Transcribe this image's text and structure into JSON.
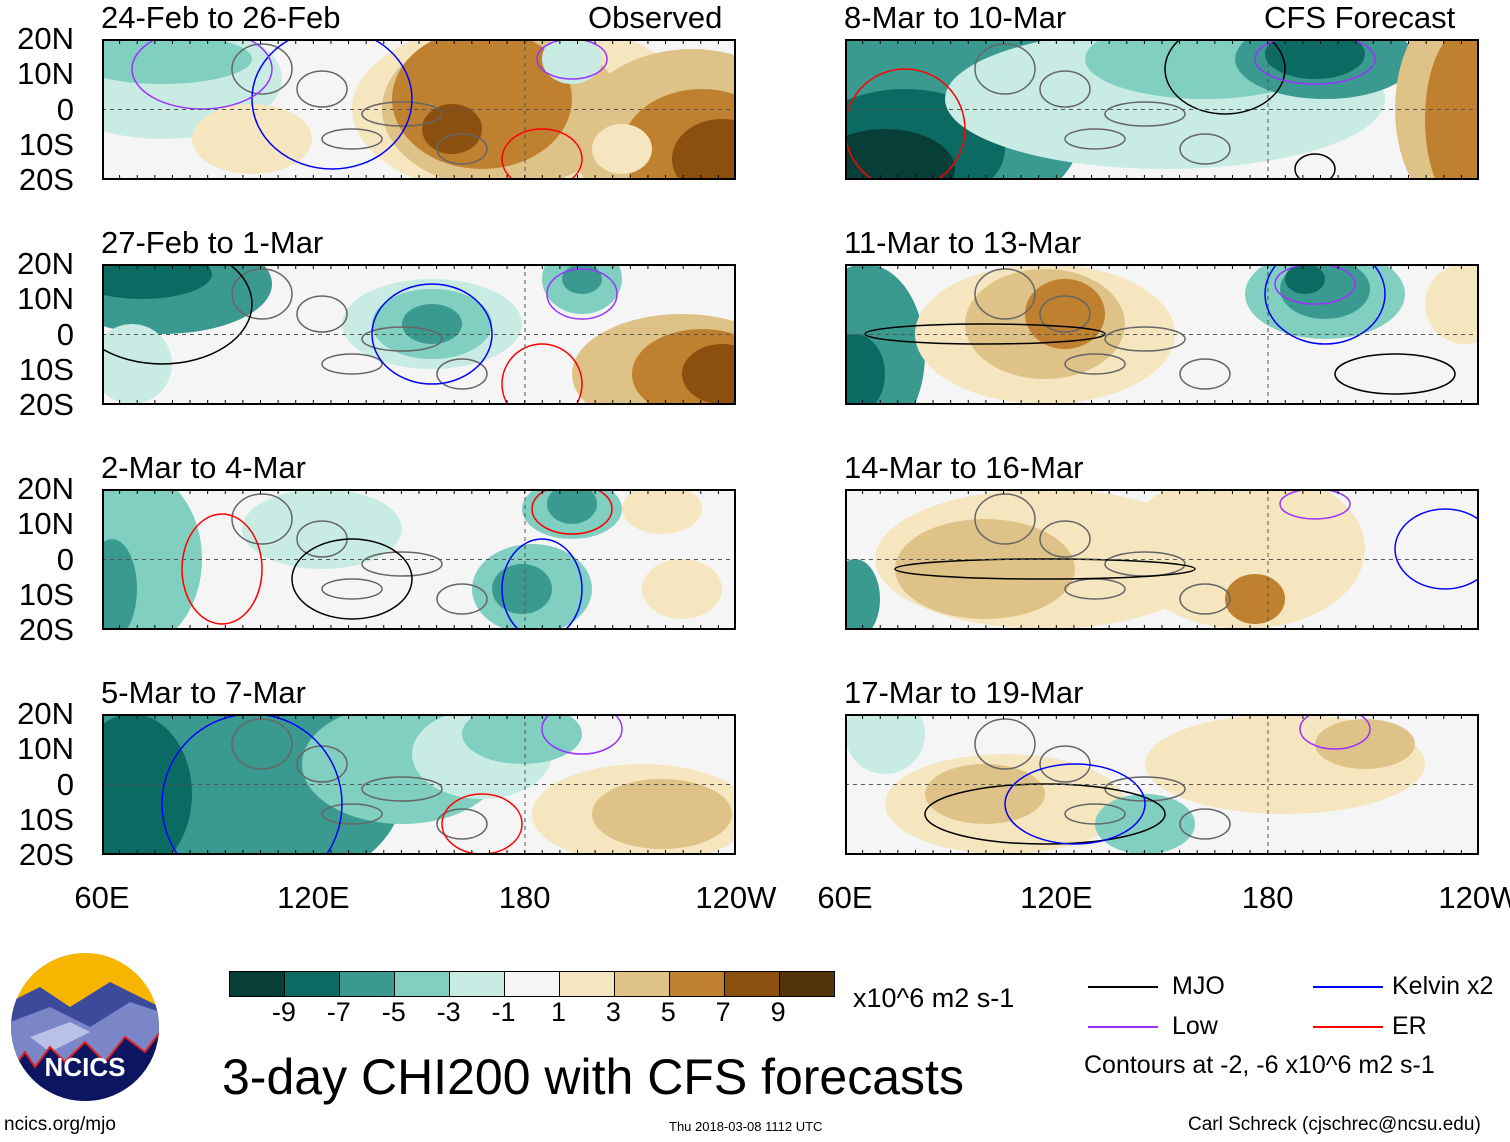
{
  "chart_data": {
    "type": "heatmap",
    "title": "3-day CHI200 with CFS forecasts",
    "left_column_label": "Observed",
    "right_column_label": "CFS Forecast",
    "panels": [
      {
        "title": "24-Feb to 26-Feb",
        "column": "Observed"
      },
      {
        "title": "27-Feb to 1-Mar",
        "column": "Observed"
      },
      {
        "title": "2-Mar to 4-Mar",
        "column": "Observed"
      },
      {
        "title": "5-Mar to 7-Mar",
        "column": "Observed"
      },
      {
        "title": "8-Mar to 10-Mar",
        "column": "CFS Forecast"
      },
      {
        "title": "11-Mar to 13-Mar",
        "column": "CFS Forecast"
      },
      {
        "title": "14-Mar to 16-Mar",
        "column": "CFS Forecast"
      },
      {
        "title": "17-Mar to 19-Mar",
        "column": "CFS Forecast"
      }
    ],
    "lat_ticks": [
      "20N",
      "10N",
      "0",
      "10S",
      "20S"
    ],
    "lon_ticks": [
      "60E",
      "120E",
      "180",
      "120W"
    ],
    "colorbar": {
      "labels": [
        "-9",
        "-7",
        "-5",
        "-3",
        "-1",
        "1",
        "3",
        "5",
        "7",
        "9"
      ],
      "colors": [
        "#073f38",
        "#0b6b63",
        "#3a9a90",
        "#80cfc0",
        "#c8ece4",
        "#f5f5f5",
        "#f5e6c0",
        "#dfc287",
        "#bf8030",
        "#8b5010",
        "#52320a"
      ],
      "units": "x10^6 m2 s-1"
    },
    "legend": [
      {
        "label": "MJO",
        "color": "#000000"
      },
      {
        "label": "Kelvin x2",
        "color": "#0000ff"
      },
      {
        "label": "Low",
        "color": "#9b30ff"
      },
      {
        "label": "ER",
        "color": "#ff0000"
      }
    ],
    "contour_note": "Contours at -2, -6 x10^6 m2 s-1"
  },
  "footer": {
    "url": "ncics.org/mjo",
    "timestamp": "Thu 2018-03-08 1112 UTC",
    "author": "Carl Schreck (cjschrec@ncsu.edu)",
    "logo_text": "NCICS"
  }
}
